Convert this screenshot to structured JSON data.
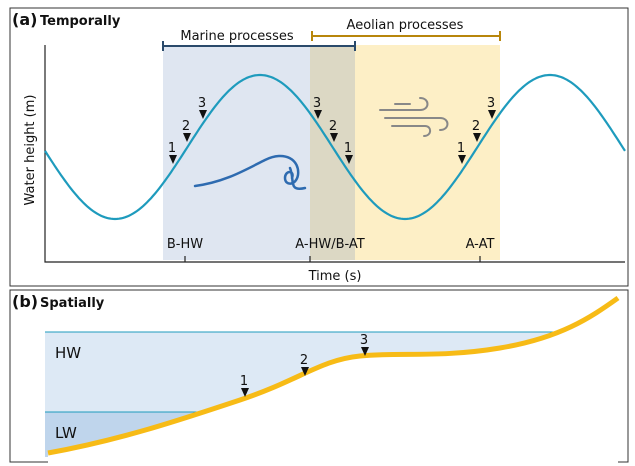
{
  "panels": [
    {
      "label": "(a)",
      "title": "Temporally",
      "ranges": [
        "Marine processes",
        "Aeolian processes"
      ],
      "y_axis_label": "Water height (m)",
      "x_axis_label": "Time (s)",
      "ticks": [
        "B-HW",
        "A-HW/B-AT",
        "A-AT"
      ],
      "markers": [
        [
          "1",
          "2",
          "3"
        ],
        [
          "3",
          "2",
          "1"
        ],
        [
          "1",
          "2",
          "3"
        ]
      ]
    },
    {
      "label": "(b)",
      "title": "Spatially",
      "levels": [
        "HW",
        "LW"
      ],
      "markers": [
        "1",
        "2",
        "3"
      ]
    }
  ]
}
